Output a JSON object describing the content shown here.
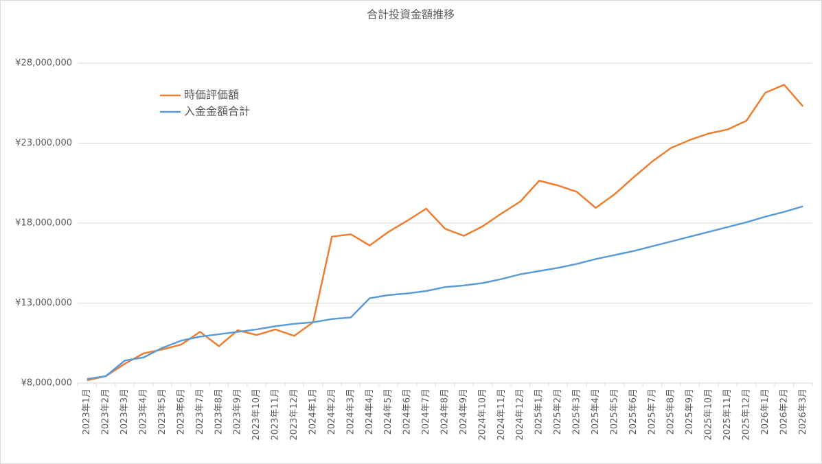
{
  "chart_data": {
    "type": "line",
    "title": "合計投資金額推移",
    "categories": [
      "2023年1月",
      "2023年2月",
      "2023年3月",
      "2023年4月",
      "2023年5月",
      "2023年6月",
      "2023年7月",
      "2023年8月",
      "2023年9月",
      "2023年10月",
      "2023年11月",
      "2023年12月",
      "2024年1月",
      "2024年2月",
      "2024年3月",
      "2024年4月",
      "2024年5月",
      "2024年6月",
      "2024年7月",
      "2024年8月",
      "2024年9月",
      "2024年10月",
      "2024年11月",
      "2024年12月",
      "2025年1月",
      "2025年2月",
      "2025年3月",
      "2025年4月",
      "2025年5月",
      "2025年6月",
      "2025年7月",
      "2025年8月",
      "2025年9月",
      "2025年10月",
      "2025年11月",
      "2025年12月",
      "2026年1月",
      "2026年2月",
      "2026年3月"
    ],
    "series": [
      {
        "name": "時価評価額",
        "color": "#ed7d31",
        "values": [
          8170000,
          8430000,
          9200000,
          9850000,
          10100000,
          10400000,
          11200000,
          10300000,
          11300000,
          11000000,
          11350000,
          10950000,
          11800000,
          17150000,
          17300000,
          16600000,
          17450000,
          18150000,
          18900000,
          17650000,
          17200000,
          17800000,
          18600000,
          19350000,
          20650000,
          20350000,
          19950000,
          18950000,
          19800000,
          20850000,
          21850000,
          22700000,
          23200000,
          23600000,
          23850000,
          24400000,
          26150000,
          26650000,
          25300000
        ]
      },
      {
        "name": "入金金額合計",
        "color": "#5b9bd5",
        "values": [
          8250000,
          8430000,
          9400000,
          9600000,
          10200000,
          10650000,
          10900000,
          11050000,
          11200000,
          11350000,
          11550000,
          11700000,
          11800000,
          12000000,
          12100000,
          13300000,
          13500000,
          13600000,
          13750000,
          14000000,
          14100000,
          14250000,
          14500000,
          14800000,
          15000000,
          15200000,
          15450000,
          15750000,
          16000000,
          16250000,
          16550000,
          16850000,
          17150000,
          17450000,
          17750000,
          18050000,
          18400000,
          18700000,
          19050000
        ]
      }
    ],
    "ylim": [
      8000000,
      28000000
    ],
    "yticks": [
      {
        "value": 8000000,
        "label": "¥8,000,000"
      },
      {
        "value": 13000000,
        "label": "¥13,000,000"
      },
      {
        "value": 18000000,
        "label": "¥18,000,000"
      },
      {
        "value": 23000000,
        "label": "¥23,000,000"
      },
      {
        "value": 28000000,
        "label": "¥28,000,000"
      }
    ],
    "grid": true
  }
}
